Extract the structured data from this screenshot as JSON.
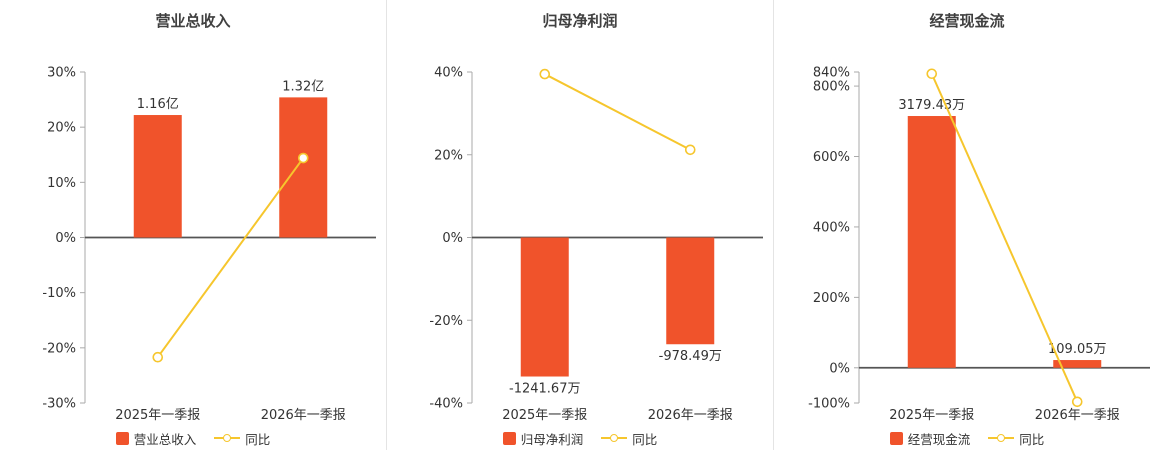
{
  "page": {
    "background": "#ffffff"
  },
  "colors": {
    "bar": "#f0532b",
    "line": "#f6c62d",
    "title": "#404040",
    "axis_text": "#333333",
    "axis_line": "#aaaaaa",
    "zero_line": "#555555",
    "divider": "#e4e4e4",
    "marker_fill": "#ffffff"
  },
  "chart_data": [
    {
      "type": "bar",
      "title": "营业总收入",
      "categories": [
        "2025年一季报",
        "2026年一季报"
      ],
      "series": [
        {
          "name": "营业总收入",
          "type": "bar",
          "values": [
            22.2,
            25.4
          ],
          "data_labels": [
            "1.16亿",
            "1.32亿"
          ]
        },
        {
          "name": "同比",
          "type": "line",
          "values": [
            -21.7,
            14.4
          ]
        }
      ],
      "ylim": [
        -30,
        30
      ],
      "yticks": [
        30,
        20,
        10,
        0,
        -10,
        -20,
        -30
      ],
      "y_tick_suffix": "%",
      "legend_position": "bottom",
      "grid": false
    },
    {
      "type": "bar",
      "title": "归母净利润",
      "categories": [
        "2025年一季报",
        "2026年一季报"
      ],
      "series": [
        {
          "name": "归母净利润",
          "type": "bar",
          "values": [
            -33.6,
            -25.8
          ],
          "data_labels": [
            "-1241.67万",
            "-978.49万"
          ]
        },
        {
          "name": "同比",
          "type": "line",
          "values": [
            39.5,
            21.2
          ]
        }
      ],
      "ylim": [
        -40,
        40
      ],
      "yticks": [
        40,
        20,
        0,
        -20,
        -40
      ],
      "y_tick_suffix": "%",
      "legend_position": "bottom",
      "grid": false
    },
    {
      "type": "bar",
      "title": "经营现金流",
      "categories": [
        "2025年一季报",
        "2026年一季报"
      ],
      "series": [
        {
          "name": "经营现金流",
          "type": "bar",
          "values": [
            715,
            22
          ],
          "data_labels": [
            "3179.43万",
            "109.05万"
          ]
        },
        {
          "name": "同比",
          "type": "line",
          "values": [
            835,
            -96.6
          ]
        }
      ],
      "ylim": [
        -100,
        840
      ],
      "yticks": [
        840,
        800,
        600,
        400,
        200,
        0,
        -100
      ],
      "y_tick_suffix": "%",
      "legend_position": "bottom",
      "grid": false
    }
  ]
}
